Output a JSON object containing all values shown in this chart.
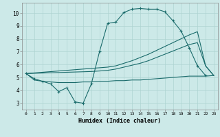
{
  "xlabel": "Humidex (Indice chaleur)",
  "bg_color": "#cce9e8",
  "grid_color": "#aed4d2",
  "line_color": "#1a6b6b",
  "xlim": [
    -0.5,
    23.5
  ],
  "ylim": [
    2.5,
    10.8
  ],
  "yticks": [
    3,
    4,
    5,
    6,
    7,
    8,
    9,
    10
  ],
  "xticks": [
    0,
    1,
    2,
    3,
    4,
    5,
    6,
    7,
    8,
    9,
    10,
    11,
    12,
    13,
    14,
    15,
    16,
    17,
    18,
    19,
    20,
    21,
    22,
    23
  ],
  "line1_x": [
    0,
    1,
    2,
    3,
    4,
    5,
    6,
    7,
    8,
    9,
    10,
    11,
    12,
    13,
    14,
    15,
    16,
    17,
    18,
    19,
    20,
    21,
    22
  ],
  "line1_y": [
    5.3,
    4.9,
    4.7,
    4.5,
    3.9,
    4.2,
    3.1,
    3.0,
    4.5,
    7.0,
    9.2,
    9.3,
    10.05,
    10.3,
    10.35,
    10.3,
    10.3,
    10.1,
    9.4,
    8.6,
    7.3,
    5.9,
    5.15
  ],
  "line2_x": [
    0,
    1,
    2,
    3,
    4,
    5,
    6,
    7,
    8,
    9,
    10,
    11,
    12,
    13,
    14,
    15,
    16,
    17,
    18,
    19,
    20,
    21,
    22,
    23
  ],
  "line2_y": [
    5.3,
    5.35,
    5.4,
    5.45,
    5.5,
    5.55,
    5.6,
    5.65,
    5.7,
    5.75,
    5.8,
    5.9,
    6.1,
    6.3,
    6.55,
    6.8,
    7.1,
    7.4,
    7.7,
    8.0,
    8.3,
    8.55,
    5.9,
    5.15
  ],
  "line3_x": [
    0,
    1,
    2,
    3,
    4,
    5,
    6,
    7,
    8,
    9,
    10,
    11,
    12,
    13,
    14,
    15,
    16,
    17,
    18,
    19,
    20,
    21,
    22,
    23
  ],
  "line3_y": [
    5.3,
    5.32,
    5.34,
    5.36,
    5.38,
    5.4,
    5.42,
    5.44,
    5.46,
    5.5,
    5.55,
    5.65,
    5.8,
    5.95,
    6.1,
    6.3,
    6.55,
    6.8,
    7.05,
    7.3,
    7.55,
    7.7,
    5.9,
    5.15
  ],
  "line4_x": [
    0,
    1,
    2,
    3,
    4,
    5,
    6,
    7,
    8,
    9,
    10,
    11,
    12,
    13,
    14,
    15,
    16,
    17,
    18,
    19,
    20,
    21,
    22,
    23
  ],
  "line4_y": [
    5.3,
    4.8,
    4.7,
    4.65,
    4.6,
    4.6,
    4.6,
    4.65,
    4.65,
    4.7,
    4.7,
    4.75,
    4.75,
    4.8,
    4.8,
    4.85,
    4.9,
    4.95,
    5.0,
    5.05,
    5.1,
    5.1,
    5.1,
    5.15
  ]
}
